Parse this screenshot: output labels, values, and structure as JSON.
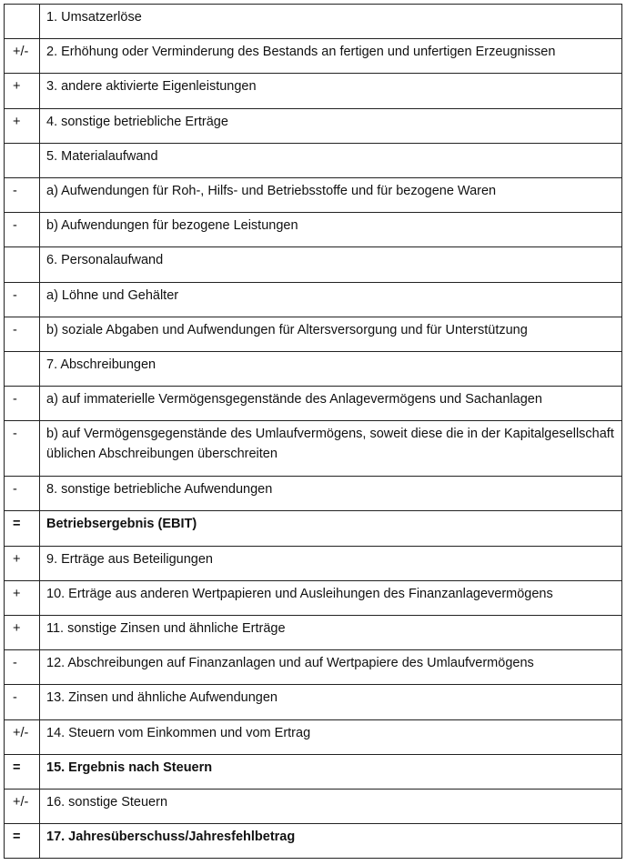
{
  "rows": [
    {
      "op": "",
      "text": "1. Umsatzerlöse"
    },
    {
      "op": "+/-",
      "text": "2. Erhöhung oder Verminderung des Bestands an fertigen und unfertigen Erzeugnissen"
    },
    {
      "op": "+",
      "text": "3. andere aktivierte Eigenleistungen"
    },
    {
      "op": "+",
      "text": "4. sonstige betriebliche Erträge"
    },
    {
      "op": "",
      "text": "5. Materialaufwand"
    },
    {
      "op": "-",
      "text": "a) Aufwendungen für Roh-, Hilfs- und Betriebsstoffe und für bezogene Waren"
    },
    {
      "op": "-",
      "text": "b) Aufwendungen für bezogene Leistungen"
    },
    {
      "op": "",
      "text": "6. Personalaufwand"
    },
    {
      "op": "-",
      "text": "a) Löhne und Gehälter"
    },
    {
      "op": "-",
      "text": "b) soziale Abgaben und Aufwendungen für Altersversorgung und für Unterstützung"
    },
    {
      "op": "",
      "text": "7. Abschreibungen"
    },
    {
      "op": "-",
      "text": "a) auf immaterielle Vermögensgegenstände des Anlagevermögens und Sachanlagen"
    },
    {
      "op": "-",
      "text": "b) auf Vermögensgegenstände des Umlaufvermögens, soweit diese die in der Kapitalgesellschaft üblichen Abschreibungen überschreiten",
      "tall": true
    },
    {
      "op": "-",
      "text": "8. sonstige betriebliche Aufwendungen"
    },
    {
      "op": "=",
      "text": "Betriebsergebnis (EBIT)",
      "bold": true
    },
    {
      "op": "+",
      "text": "9. Erträge aus Beteiligungen"
    },
    {
      "op": "+",
      "text": "10. Erträge aus anderen Wertpapieren und Ausleihungen des Finanzanlagevermögens"
    },
    {
      "op": "+",
      "text": "11. sonstige Zinsen und ähnliche Erträge"
    },
    {
      "op": "-",
      "text": "12. Abschreibungen auf Finanzanlagen und auf Wertpapiere des Umlaufvermögens"
    },
    {
      "op": "-",
      "text": "13. Zinsen und ähnliche Aufwendungen"
    },
    {
      "op": "+/-",
      "text": "14. Steuern vom Einkommen und vom Ertrag"
    },
    {
      "op": "=",
      "text": "15. Ergebnis nach Steuern",
      "bold": true
    },
    {
      "op": "+/-",
      "text": "16. sonstige Steuern"
    },
    {
      "op": "=",
      "text": "17. Jahresüberschuss/Jahresfehlbetrag",
      "bold": true
    }
  ]
}
